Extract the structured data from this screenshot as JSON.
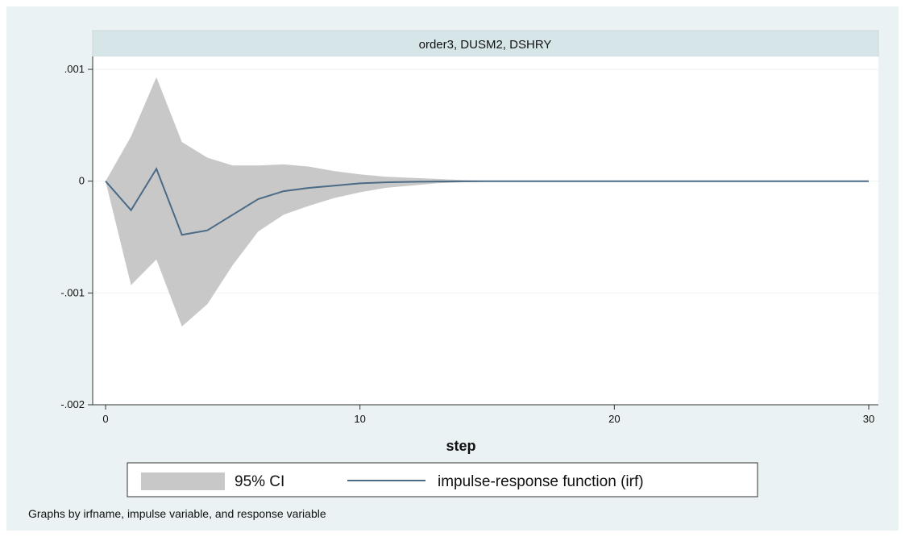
{
  "chart_data": {
    "type": "area",
    "panel_title": "order3, DUSM2, DSHRY",
    "xlabel": "step",
    "ylabel": "",
    "xlim": [
      0,
      30
    ],
    "ylim": [
      -0.002,
      0.001
    ],
    "x_ticks": [
      0,
      10,
      20,
      30
    ],
    "x_tick_labels": [
      "0",
      "10",
      "20",
      "30"
    ],
    "y_ticks": [
      0.001,
      0,
      -0.001,
      -0.002
    ],
    "y_tick_labels": [
      ".001",
      "0",
      "-.001",
      "-.002"
    ],
    "grid": true,
    "legend_position": "bottom",
    "x": [
      0,
      1,
      2,
      3,
      4,
      5,
      6,
      7,
      8,
      9,
      10,
      11,
      12,
      13,
      14,
      15,
      16,
      17,
      18,
      19,
      20,
      21,
      22,
      23,
      24,
      25,
      26,
      27,
      28,
      29,
      30
    ],
    "series": [
      {
        "name": "95% CI",
        "kind": "band",
        "color": "#c8c8c8",
        "upper": [
          0.0,
          0.0004,
          0.00093,
          0.00035,
          0.00021,
          0.00014,
          0.00014,
          0.00015,
          0.00013,
          9e-05,
          6e-05,
          4e-05,
          3e-05,
          2e-05,
          1e-05,
          5e-06,
          3e-06,
          2e-06,
          1e-06,
          5e-07,
          0,
          0,
          0,
          0,
          0,
          0,
          0,
          0,
          0,
          0,
          0
        ],
        "lower": [
          0.0,
          -0.00093,
          -0.0007,
          -0.0013,
          -0.0011,
          -0.00075,
          -0.00045,
          -0.0003,
          -0.00022,
          -0.00015,
          -0.0001,
          -6e-05,
          -4e-05,
          -2e-05,
          -1e-05,
          -5e-06,
          -3e-06,
          -2e-06,
          -1e-06,
          -5e-07,
          0,
          0,
          0,
          0,
          0,
          0,
          0,
          0,
          0,
          0,
          0
        ]
      },
      {
        "name": "impulse-response function (irf)",
        "kind": "line",
        "color": "#4a6a86",
        "values": [
          0.0,
          -0.00026,
          0.00011,
          -0.00048,
          -0.00044,
          -0.0003,
          -0.00016,
          -9e-05,
          -6e-05,
          -4e-05,
          -2e-05,
          -1e-05,
          -6e-06,
          -3e-06,
          -2e-06,
          -1e-06,
          0,
          0,
          0,
          0,
          0,
          0,
          0,
          0,
          0,
          0,
          0,
          0,
          0,
          0,
          0
        ]
      }
    ],
    "legend_labels": [
      "95% CI",
      "impulse-response function (irf)"
    ],
    "note": "Graphs by irfname, impulse variable, and response variable"
  }
}
